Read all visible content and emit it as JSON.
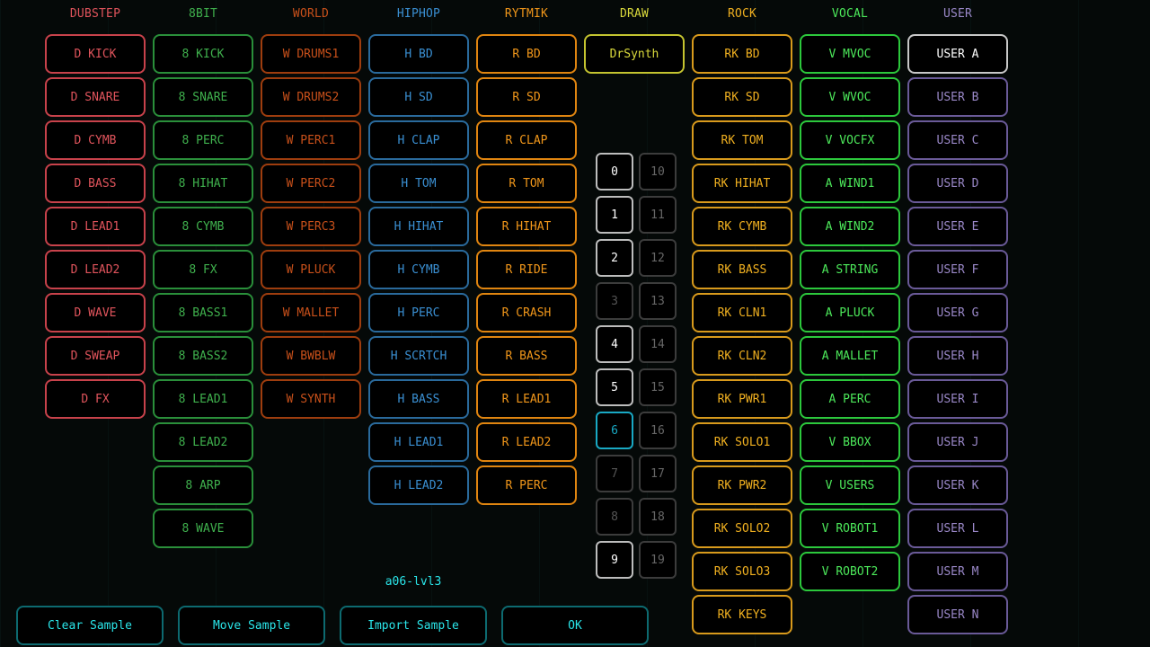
{
  "columns": [
    {
      "header": "DUBSTEP",
      "border": "#c8424b",
      "text": "#e0545c",
      "items": [
        "D KICK",
        "D SNARE",
        "D CYMB",
        "D BASS",
        "D LEAD1",
        "D LEAD2",
        "D WAVE",
        "D SWEAP",
        "D FX"
      ]
    },
    {
      "header": "8BIT",
      "border": "#2a8f3a",
      "text": "#3fb04d",
      "items": [
        "8 KICK",
        "8 SNARE",
        "8 PERC",
        "8 HIHAT",
        "8 CYMB",
        "8 FX",
        "8 BASS1",
        "8 BASS2",
        "8 LEAD1",
        "8 LEAD2",
        "8 ARP",
        "8 WAVE"
      ]
    },
    {
      "header": "WORLD",
      "border": "#9e3d0e",
      "text": "#c8501a",
      "items": [
        "W DRUMS1",
        "W DRUMS2",
        "W PERC1",
        "W PERC2",
        "W PERC3",
        "W PLUCK",
        "W MALLET",
        "W BWBLW",
        "W SYNTH"
      ]
    },
    {
      "header": "HIPHOP",
      "border": "#2a6a9c",
      "text": "#3a8fd2",
      "items": [
        "H BD",
        "H SD",
        "H CLAP",
        "H TOM",
        "H HIHAT",
        "H CYMB",
        "H PERC",
        "H SCRTCH",
        "H BASS",
        "H LEAD1",
        "H LEAD2"
      ]
    },
    {
      "header": "RYTMIK",
      "border": "#e08510",
      "text": "#f0961a",
      "items": [
        "R BD",
        "R SD",
        "R CLAP",
        "R TOM",
        "R HIHAT",
        "R RIDE",
        "R CRASH",
        "R BASS",
        "R LEAD1",
        "R LEAD2",
        "R PERC"
      ]
    },
    {
      "header": "DRAW",
      "border": "#c4c430",
      "text": "#dada3c",
      "items": [
        "DrSynth"
      ]
    },
    {
      "header": "ROCK",
      "border": "#d89a1c",
      "text": "#f0b020",
      "items": [
        "RK BD",
        "RK SD",
        "RK TOM",
        "RK HIHAT",
        "RK CYMB",
        "RK BASS",
        "RK CLN1",
        "RK CLN2",
        "RK PWR1",
        "RK SOLO1",
        "RK PWR2",
        "RK SOLO2",
        "RK SOLO3",
        "RK KEYS"
      ]
    },
    {
      "header": "VOCAL",
      "border": "#2cc83c",
      "text": "#4ce85a",
      "items": [
        "V MVOC",
        "V WVOC",
        "V VOCFX",
        "A WIND1",
        "A WIND2",
        "A STRING",
        "A PLUCK",
        "A MALLET",
        "A PERC",
        "V BBOX",
        "V USERS",
        "V ROBOT1",
        "V ROBOT2"
      ]
    },
    {
      "header": "USER",
      "border": "#6a5a98",
      "text": "#9a88c8",
      "items": [
        "USER A",
        "USER B",
        "USER C",
        "USER D",
        "USER E",
        "USER F",
        "USER G",
        "USER H",
        "USER I",
        "USER J",
        "USER K",
        "USER L",
        "USER M",
        "USER N"
      ]
    }
  ],
  "selected_sample": "USER A",
  "slots_left": [
    {
      "label": "0",
      "state": "filled"
    },
    {
      "label": "1",
      "state": "filled"
    },
    {
      "label": "2",
      "state": "filled"
    },
    {
      "label": "3",
      "state": "empty"
    },
    {
      "label": "4",
      "state": "filled"
    },
    {
      "label": "5",
      "state": "filled"
    },
    {
      "label": "6",
      "state": "active"
    },
    {
      "label": "7",
      "state": "empty"
    },
    {
      "label": "8",
      "state": "empty"
    },
    {
      "label": "9",
      "state": "filled"
    }
  ],
  "slots_right": [
    "10",
    "11",
    "12",
    "13",
    "14",
    "15",
    "16",
    "17",
    "18",
    "19"
  ],
  "status_text": "a06-lvl3",
  "buttons": {
    "clear": "Clear Sample",
    "move": "Move Sample",
    "import": "Import Sample",
    "ok": "OK"
  },
  "colors": {
    "accent": "#2ae6ea",
    "active_slot": "#19a9c4"
  }
}
